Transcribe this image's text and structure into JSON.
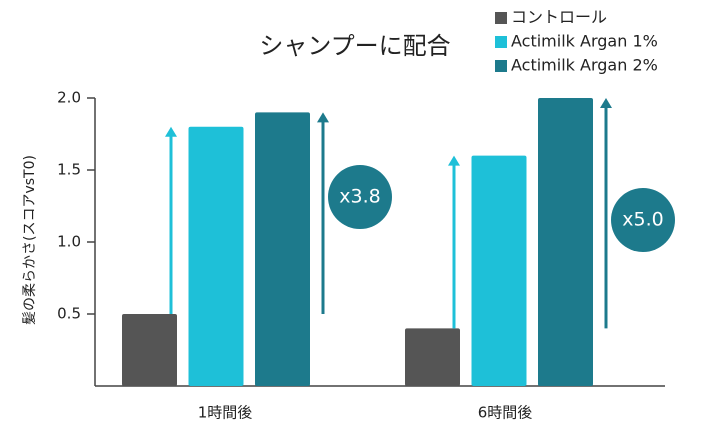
{
  "chart_data": {
    "type": "bar",
    "title": "シャンプーに配合",
    "y_label": "髪の柔らかさ(スコアvsT0)",
    "categories": [
      "1時間後",
      "6時間後"
    ],
    "series": [
      {
        "name": "コントロール",
        "color": "#555555",
        "values": [
          0.5,
          0.4
        ]
      },
      {
        "name": "Actimilk Argan 1%",
        "color": "#1ec0d8",
        "values": [
          1.8,
          1.6
        ]
      },
      {
        "name": "Actimilk Argan 2%",
        "color": "#1d7a8c",
        "values": [
          1.9,
          2.0
        ]
      }
    ],
    "ylim": [
      0,
      2
    ],
    "yticks": [
      0.5,
      {
        "value": 1,
        "label": "1.0"
      },
      1.5,
      {
        "value": 2,
        "label": "2.0"
      }
    ],
    "annotations": [
      "x3.8",
      "x5.0"
    ],
    "annotation_color": "#1d7a8c",
    "legend": "top-right"
  }
}
